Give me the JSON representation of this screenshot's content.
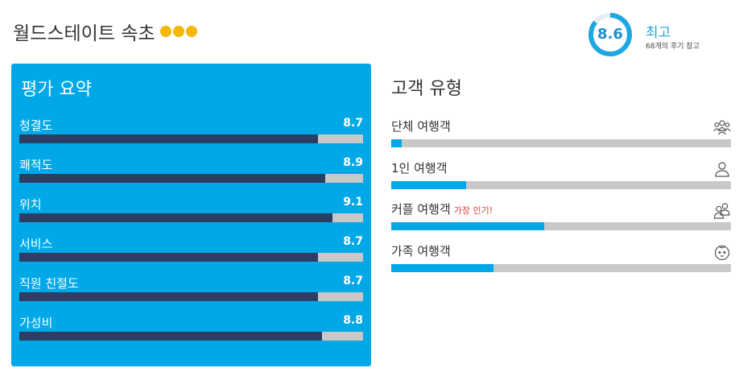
{
  "hotel": {
    "name": "월드스테이트 속초",
    "stars": 3,
    "star_color": "#f5b800"
  },
  "score": {
    "value": "8.6",
    "verdict": "최고",
    "review_count": "68개의 후기 참고",
    "ring_color": "#1ea7e1",
    "ring_fraction": 0.86
  },
  "summary": {
    "title": "평가 요약",
    "panel_color": "#00a8e8",
    "bar_color": "#2c3e63",
    "items": [
      {
        "label": "청결도",
        "value": "8.7",
        "score": 8.7
      },
      {
        "label": "쾌적도",
        "value": "8.9",
        "score": 8.9
      },
      {
        "label": "위치",
        "value": "9.1",
        "score": 9.1
      },
      {
        "label": "서비스",
        "value": "8.7",
        "score": 8.7
      },
      {
        "label": "직원 친절도",
        "value": "8.7",
        "score": 8.7
      },
      {
        "label": "가성비",
        "value": "8.8",
        "score": 8.8
      }
    ]
  },
  "traveler_types": {
    "title": "고객 유형",
    "bar_color": "#00a8e8",
    "items": [
      {
        "label": "단체 여행객",
        "badge": "",
        "icon": "group-icon",
        "share": 0.03
      },
      {
        "label": "1인 여행객",
        "badge": "",
        "icon": "person-icon",
        "share": 0.22
      },
      {
        "label": "커플 여행객",
        "badge": "가장 인기!",
        "icon": "couple-icon",
        "share": 0.45
      },
      {
        "label": "가족 여행객",
        "badge": "",
        "icon": "baby-icon",
        "share": 0.3
      }
    ]
  }
}
